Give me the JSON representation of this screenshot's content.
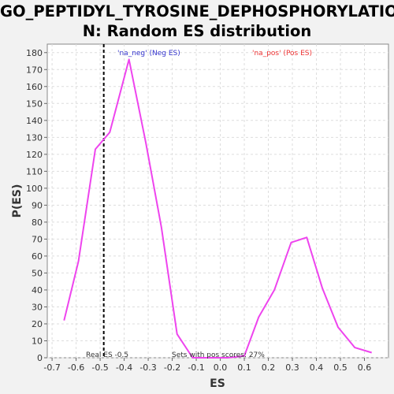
{
  "chart_data": {
    "type": "line",
    "title": "GO_PEPTIDYL_TYROSINE_DEPHOSPHORYLATION: Random ES distribution",
    "title_lines": [
      "GO_PEPTIDYL_TYROSINE_DEPHOSPHORYLATIO",
      "N: Random ES distribution"
    ],
    "xlabel": "ES",
    "ylabel": "P(ES)",
    "xlim": [
      -0.72,
      0.7
    ],
    "ylim": [
      0,
      185
    ],
    "xticks": [
      -0.7,
      -0.6,
      -0.5,
      -0.4,
      -0.3,
      -0.2,
      -0.1,
      0.0,
      0.1,
      0.2,
      0.3,
      0.4,
      0.5,
      0.6
    ],
    "xtick_labels": [
      "-0.7",
      "-0.6",
      "-0.5",
      "-0.4",
      "-0.3",
      "-0.2",
      "-0.1",
      "0.0",
      "0.1",
      "0.2",
      "0.3",
      "0.4",
      "0.5",
      "0.6"
    ],
    "yticks": [
      0,
      10,
      20,
      30,
      40,
      50,
      60,
      70,
      80,
      90,
      100,
      110,
      120,
      130,
      140,
      150,
      160,
      170,
      180
    ],
    "grid": true,
    "series": [
      {
        "name": "distribution",
        "color": "#ee44ee",
        "x": [
          -0.65,
          -0.59,
          -0.52,
          -0.46,
          -0.38,
          -0.31,
          -0.245,
          -0.18,
          -0.115,
          -0.05,
          0.03,
          0.1,
          0.16,
          0.225,
          0.295,
          0.36,
          0.425,
          0.49,
          0.56,
          0.63
        ],
        "y": [
          22,
          57,
          123,
          133,
          176,
          127,
          77,
          14,
          0,
          0,
          0,
          1,
          24,
          40,
          68,
          71,
          41,
          18,
          6,
          3
        ]
      }
    ],
    "real_es": -0.485,
    "legend": {
      "neg": {
        "text": "'na_neg' (Neg ES)",
        "color": "#3333cc"
      },
      "pos": {
        "text": "'na_pos' (Pos ES)",
        "color": "#ee3333"
      }
    },
    "annotations": {
      "real_es": "Real ES -0.5",
      "pos_scores": "Sets with pos scores: 27%"
    }
  }
}
